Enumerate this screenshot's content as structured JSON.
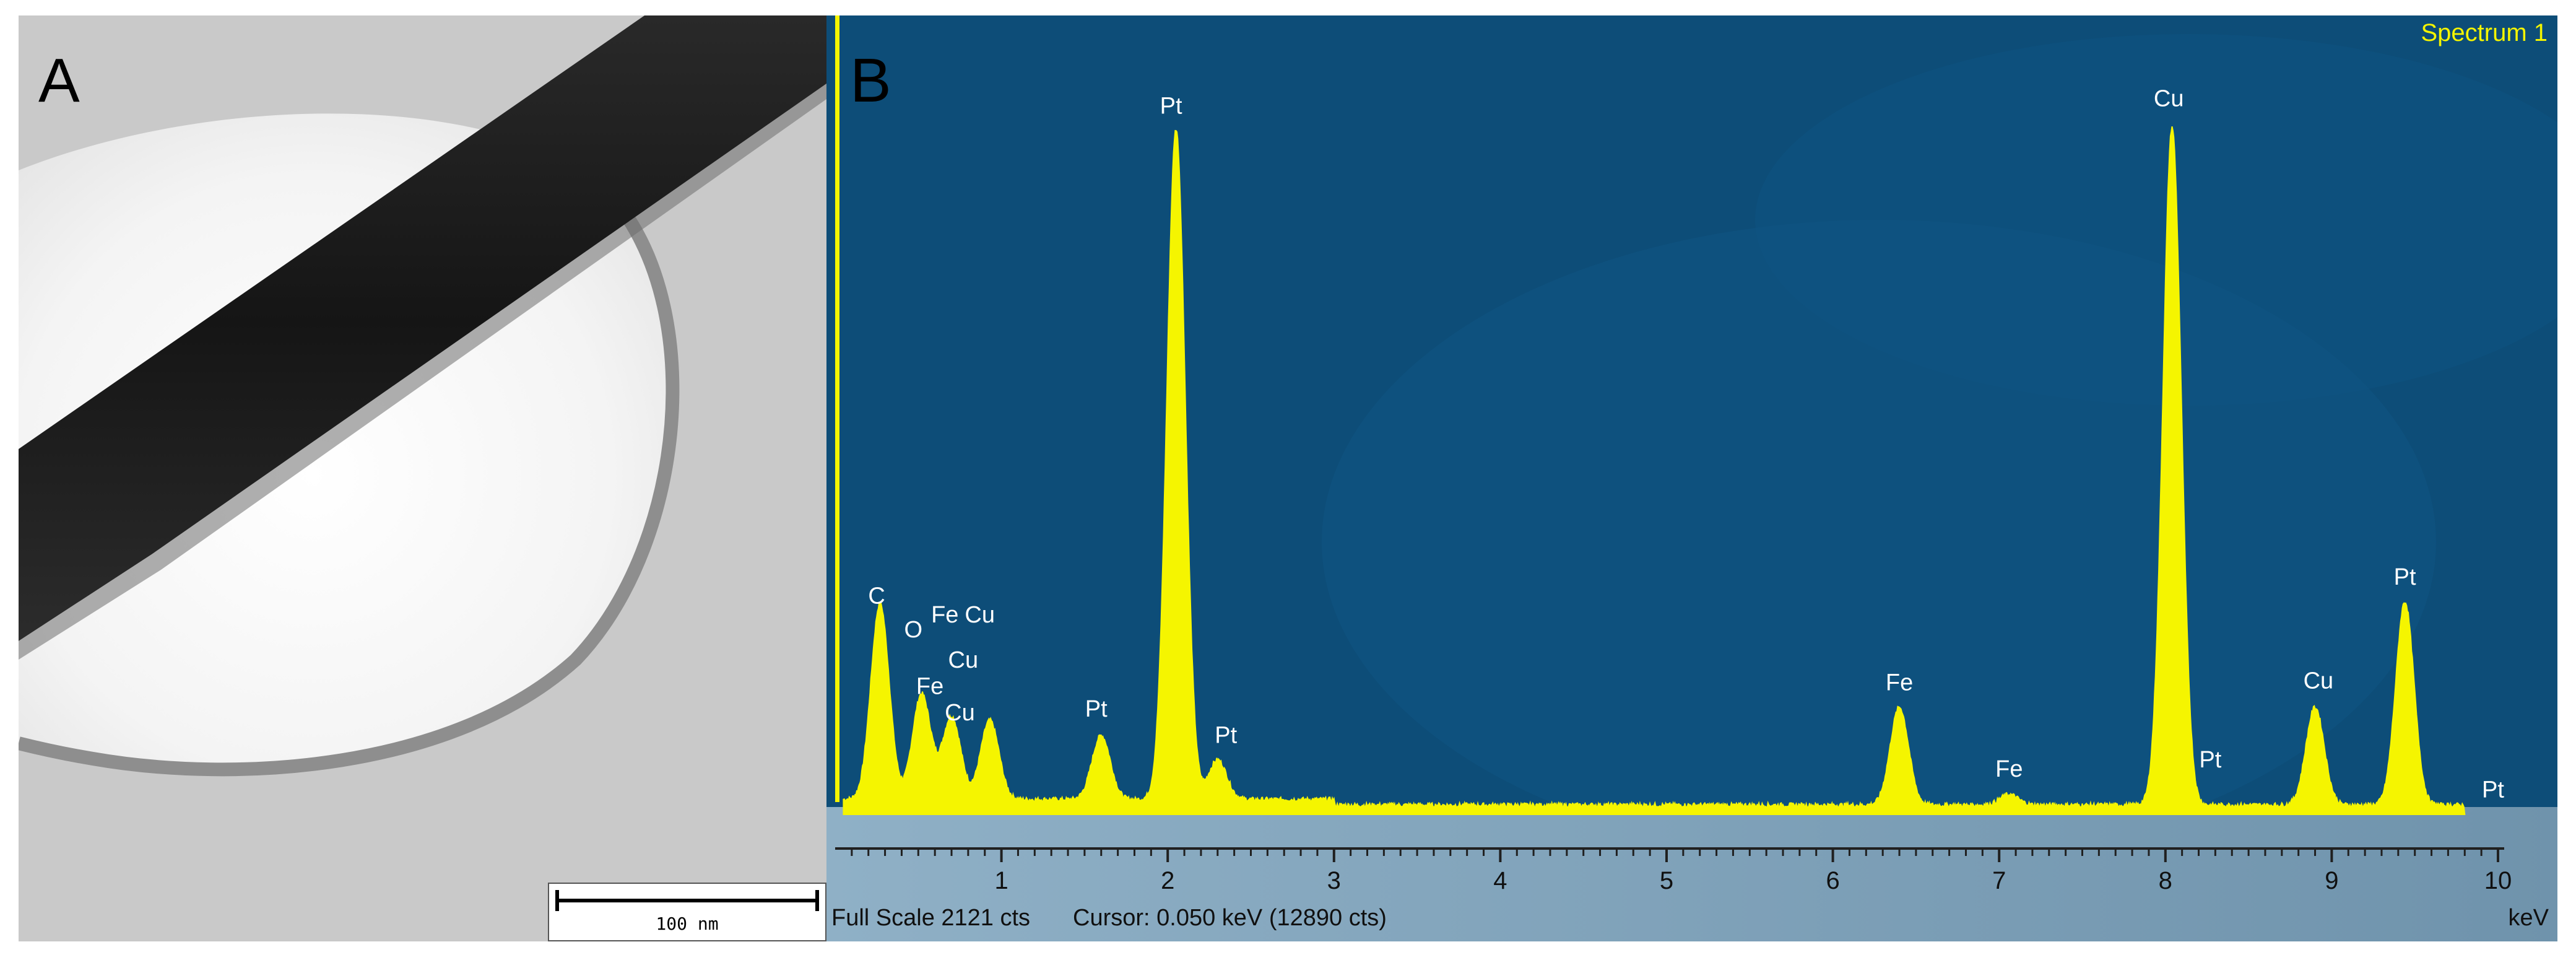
{
  "panel_a": {
    "letter": "A",
    "scale_bar_label": "100 nm"
  },
  "panel_b": {
    "letter": "B",
    "spectrum_name": "Spectrum 1",
    "status_full_scale": "Full Scale 2121 cts",
    "status_cursor": "Cursor: 0.050 keV (12890 cts)",
    "colors": {
      "background": "#0d4d78",
      "spectrum": "#f5f500",
      "text": "#ffffff"
    }
  },
  "chart_data": {
    "type": "area",
    "title": "",
    "xlabel": "keV",
    "ylabel": "",
    "xlim": [
      0,
      10
    ],
    "ylim": [
      0,
      2121
    ],
    "x_ticks": [
      1,
      2,
      3,
      4,
      5,
      6,
      7,
      8,
      9,
      10
    ],
    "grid": false,
    "baseline_counts": 25,
    "peaks": [
      {
        "label": "C",
        "x": 0.27,
        "y": 520
      },
      {
        "label": "O",
        "x": 0.52,
        "y": 280
      },
      {
        "label": "Fe",
        "x": 0.7,
        "y": 220
      },
      {
        "label": "Cu",
        "x": 0.93,
        "y": 210
      },
      {
        "label": "Pt",
        "x": 1.6,
        "y": 170
      },
      {
        "label": "Pt",
        "x": 2.05,
        "y": 1780
      },
      {
        "label": "Pt",
        "x": 2.3,
        "y": 105
      },
      {
        "label": "Fe",
        "x": 6.4,
        "y": 260
      },
      {
        "label": "Fe",
        "x": 7.06,
        "y": 28
      },
      {
        "label": "Cu",
        "x": 8.04,
        "y": 1800
      },
      {
        "label": "Cu",
        "x": 8.9,
        "y": 260
      },
      {
        "label": "Pt",
        "x": 9.44,
        "y": 540
      }
    ],
    "annotations": [
      {
        "text": "C",
        "x": 0.25,
        "y": 560
      },
      {
        "text": "O",
        "x": 0.47,
        "y": 470
      },
      {
        "text": "Fe",
        "x": 0.66,
        "y": 510
      },
      {
        "text": "Cu",
        "x": 0.87,
        "y": 510
      },
      {
        "text": "Cu",
        "x": 0.77,
        "y": 390
      },
      {
        "text": "Fe",
        "x": 0.57,
        "y": 320
      },
      {
        "text": "Cu",
        "x": 0.75,
        "y": 250
      },
      {
        "text": "Pt",
        "x": 1.57,
        "y": 260
      },
      {
        "text": "Pt",
        "x": 2.02,
        "y": 1860
      },
      {
        "text": "Pt",
        "x": 2.35,
        "y": 190
      },
      {
        "text": "Fe",
        "x": 6.4,
        "y": 330
      },
      {
        "text": "Fe",
        "x": 7.06,
        "y": 100
      },
      {
        "text": "Cu",
        "x": 8.02,
        "y": 1880
      },
      {
        "text": "Pt",
        "x": 8.27,
        "y": 125
      },
      {
        "text": "Cu",
        "x": 8.92,
        "y": 335
      },
      {
        "text": "Pt",
        "x": 9.44,
        "y": 610
      },
      {
        "text": "Pt",
        "x": 9.97,
        "y": 45
      }
    ]
  }
}
